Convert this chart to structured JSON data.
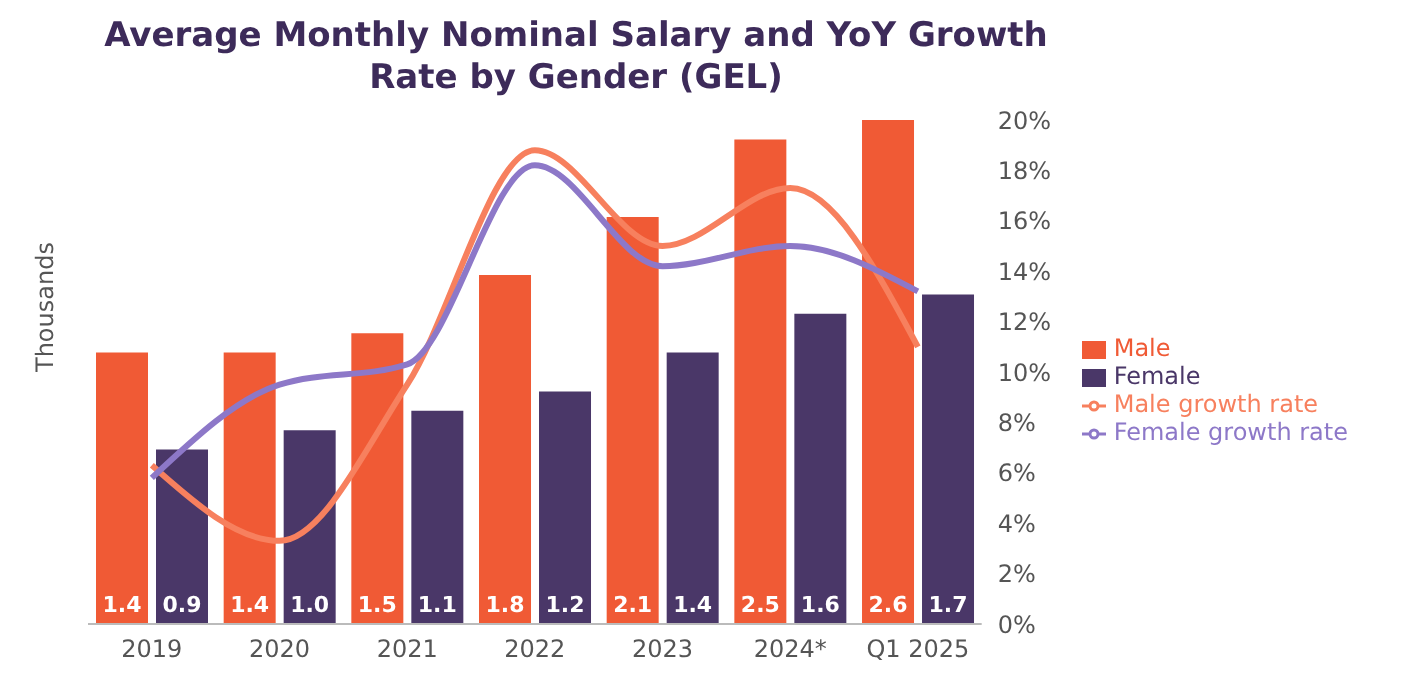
{
  "chart_data": {
    "type": "bar",
    "title": "Average Monthly Nominal Salary and YoY Growth Rate by Gender (GEL)",
    "ylabel": "Thousands",
    "categories": [
      "2019",
      "2020",
      "2021",
      "2022",
      "2023",
      "2024*",
      "Q1 2025"
    ],
    "series": [
      {
        "name": "Male",
        "color": "#f05a35",
        "values": [
          1.4,
          1.4,
          1.5,
          1.8,
          2.1,
          2.5,
          2.6
        ],
        "value_labels": [
          "1.4",
          "1.4",
          "1.5",
          "1.8",
          "2.1",
          "2.5",
          "2.6"
        ]
      },
      {
        "name": "Female",
        "color": "#4a3768",
        "values": [
          0.9,
          1.0,
          1.1,
          1.2,
          1.4,
          1.6,
          1.7
        ],
        "value_labels": [
          "0.9",
          "1.0",
          "1.1",
          "1.2",
          "1.4",
          "1.6",
          "1.7"
        ]
      },
      {
        "name": "Male growth rate",
        "type": "line",
        "axis": "y2",
        "color": "#f7805e",
        "values": [
          6.3,
          3.3,
          9.5,
          18.8,
          15.0,
          17.3,
          11.0
        ]
      },
      {
        "name": "Female growth rate",
        "type": "line",
        "axis": "y2",
        "color": "#8d78c8",
        "values": [
          5.8,
          9.5,
          10.3,
          18.2,
          14.2,
          15.0,
          13.2
        ]
      }
    ],
    "y2lim": [
      0,
      20
    ],
    "y2ticks": [
      {
        "value": 0,
        "label": "0%"
      },
      {
        "value": 2,
        "label": "2%"
      },
      {
        "value": 4,
        "label": "4%"
      },
      {
        "value": 6,
        "label": "6%"
      },
      {
        "value": 8,
        "label": "8%"
      },
      {
        "value": 10,
        "label": "10%"
      },
      {
        "value": 12,
        "label": "12%"
      },
      {
        "value": 14,
        "label": "14%"
      },
      {
        "value": 16,
        "label": "16%"
      },
      {
        "value": 18,
        "label": "18%"
      },
      {
        "value": 20,
        "label": "20%"
      }
    ],
    "legend": "right",
    "marker": "none",
    "line_style": "solid"
  }
}
